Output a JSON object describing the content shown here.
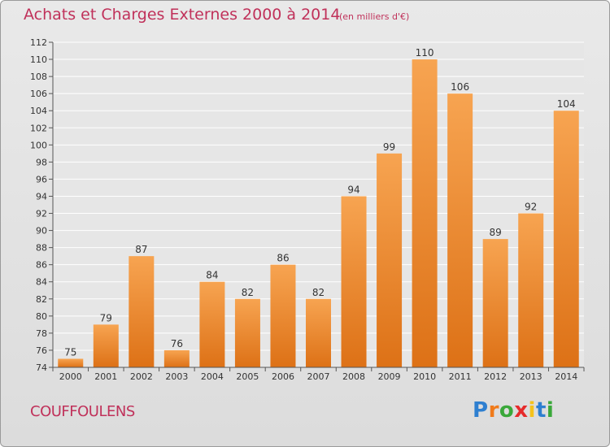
{
  "header": {
    "title": "Achats et Charges Externes 2000 à 2014",
    "subtitle": "(en milliers d'€)"
  },
  "footer": {
    "commune": "COUFFOULENS"
  },
  "brand": {
    "letters": [
      "P",
      "r",
      "o",
      "x",
      "i",
      "t",
      "i"
    ],
    "colors": [
      "#2e7fd0",
      "#f07a1a",
      "#3aa83a",
      "#e62b2b",
      "#f5c21b",
      "#2e7fd0",
      "#3aa83a"
    ]
  },
  "chart_data": {
    "type": "bar",
    "categories": [
      "2000",
      "2001",
      "2002",
      "2003",
      "2004",
      "2005",
      "2006",
      "2007",
      "2008",
      "2009",
      "2010",
      "2011",
      "2012",
      "2013",
      "2014"
    ],
    "values": [
      75,
      79,
      87,
      76,
      84,
      82,
      86,
      82,
      94,
      99,
      110,
      106,
      89,
      92,
      104
    ],
    "ylim": [
      74,
      112
    ],
    "yticks": [
      74,
      76,
      78,
      80,
      82,
      84,
      86,
      88,
      90,
      92,
      94,
      96,
      98,
      100,
      102,
      104,
      106,
      108,
      110,
      112
    ],
    "grid": true,
    "bar_color": "#f28c2a",
    "grid_color": "#ffffff",
    "text_color": "#333333"
  }
}
